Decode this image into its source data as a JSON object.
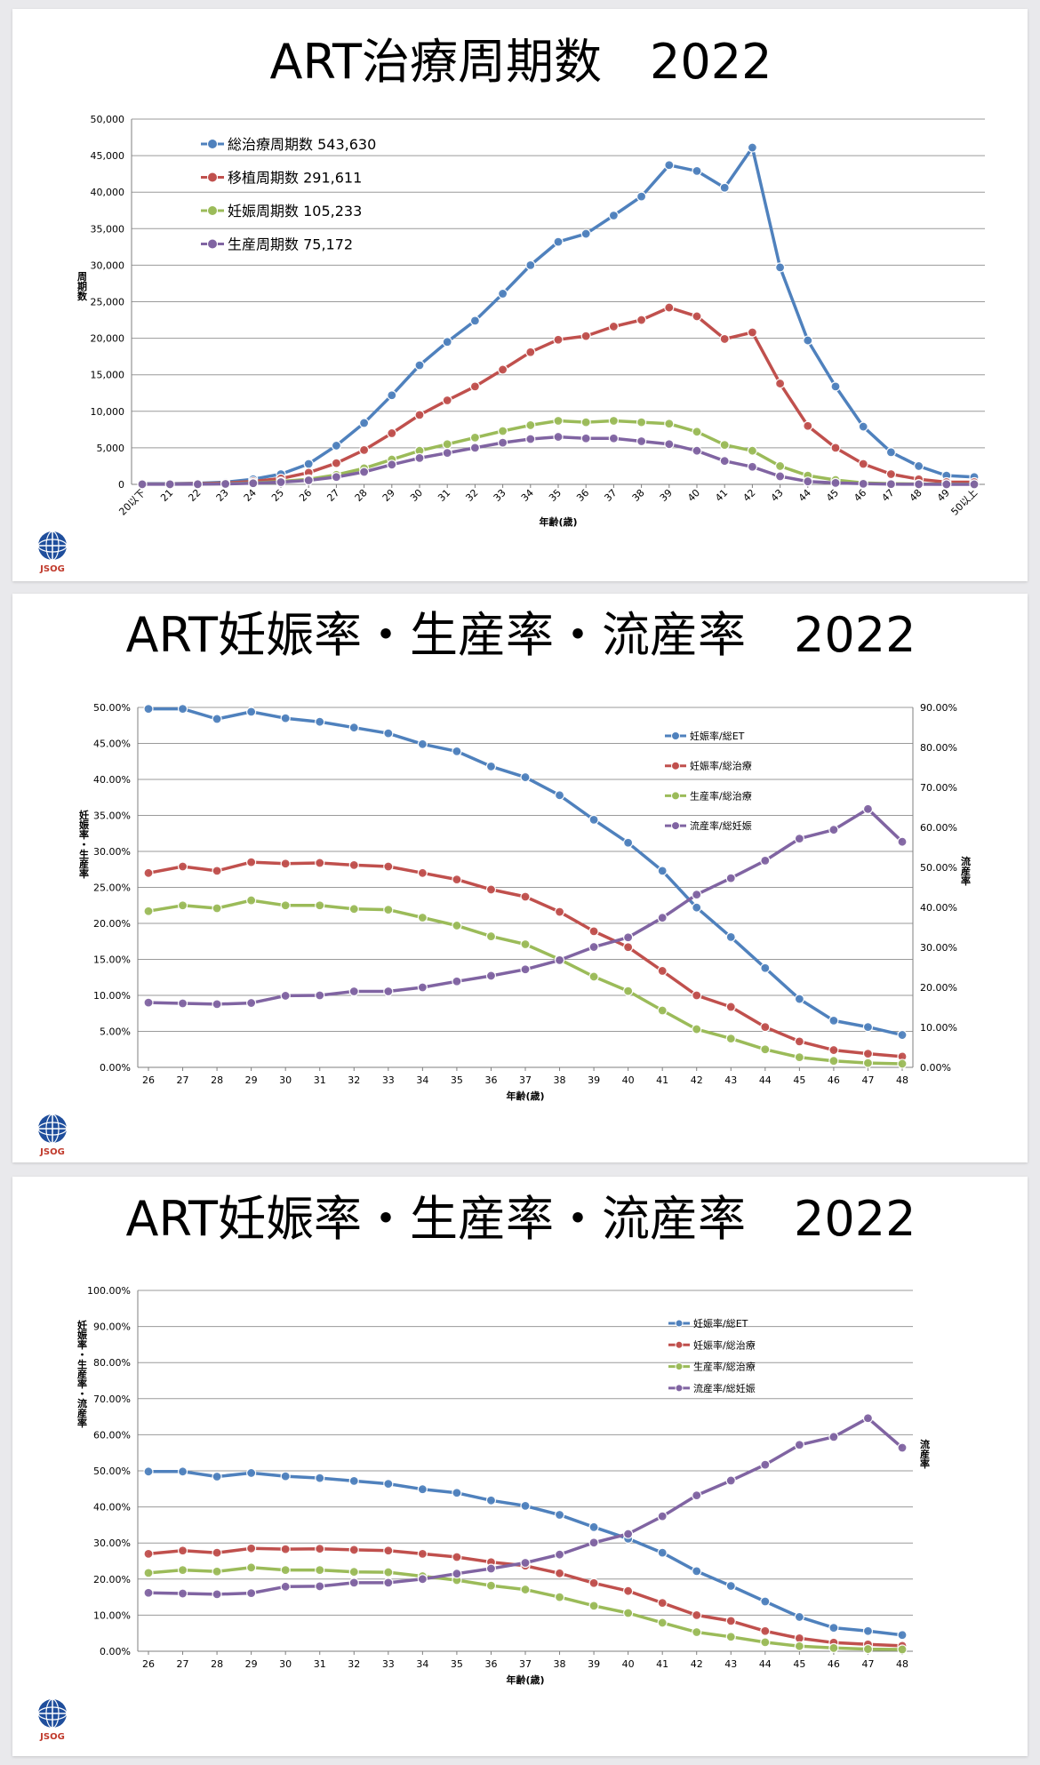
{
  "logo_text": "JSOG",
  "chart_data": [
    {
      "type": "line",
      "title": "ART治療周期数　2022",
      "xlabel": "年齢(歳)",
      "ylabel": "周期数",
      "ylim": [
        0,
        50000
      ],
      "yticks": [
        "0",
        "5,000",
        "10,000",
        "15,000",
        "20,000",
        "25,000",
        "30,000",
        "35,000",
        "40,000",
        "45,000",
        "50,000"
      ],
      "categories": [
        "20以下",
        "21",
        "22",
        "23",
        "24",
        "25",
        "26",
        "27",
        "28",
        "29",
        "30",
        "31",
        "32",
        "33",
        "34",
        "35",
        "36",
        "37",
        "38",
        "39",
        "40",
        "41",
        "42",
        "43",
        "44",
        "45",
        "46",
        "47",
        "48",
        "49",
        "50以上"
      ],
      "legend_position": "top-left",
      "series": [
        {
          "name": "総治療周期数 543,630",
          "color": "#4f81bd",
          "values": [
            100,
            100,
            150,
            300,
            700,
            1400,
            2800,
            5300,
            8400,
            12200,
            16300,
            19500,
            22400,
            26100,
            30000,
            33200,
            34300,
            36800,
            39400,
            43700,
            42900,
            40600,
            46100,
            29700,
            19700,
            13400,
            7900,
            4400,
            2500,
            1200,
            1000
          ]
        },
        {
          "name": "移植周期数 291,611",
          "color": "#c0504d",
          "values": [
            50,
            50,
            80,
            200,
            400,
            800,
            1600,
            2900,
            4700,
            7000,
            9500,
            11500,
            13400,
            15700,
            18100,
            19800,
            20300,
            21600,
            22500,
            24200,
            23000,
            19900,
            20800,
            13800,
            8000,
            5000,
            2800,
            1400,
            700,
            300,
            300
          ]
        },
        {
          "name": "妊娠周期数 105,233",
          "color": "#9bbb59",
          "values": [
            20,
            20,
            30,
            80,
            200,
            400,
            700,
            1300,
            2200,
            3400,
            4600,
            5500,
            6400,
            7300,
            8100,
            8700,
            8500,
            8700,
            8500,
            8300,
            7200,
            5400,
            4600,
            2500,
            1200,
            600,
            200,
            100,
            50,
            20,
            20
          ]
        },
        {
          "name": "生産周期数 75,172",
          "color": "#8064a2",
          "values": [
            10,
            10,
            20,
            60,
            150,
            300,
            550,
            1000,
            1700,
            2700,
            3600,
            4300,
            5000,
            5700,
            6200,
            6500,
            6300,
            6300,
            5900,
            5500,
            4600,
            3200,
            2400,
            1100,
            400,
            200,
            80,
            30,
            10,
            5,
            5
          ]
        }
      ]
    },
    {
      "type": "line",
      "title": "ART妊娠率・生産率・流産率　2022",
      "xlabel": "年齢(歳)",
      "ylabel": "妊娠率・生産率",
      "y2label": "流産率",
      "ylim": [
        0,
        50
      ],
      "y2lim": [
        0,
        90
      ],
      "yticks": [
        "0.00%",
        "5.00%",
        "10.00%",
        "15.00%",
        "20.00%",
        "25.00%",
        "30.00%",
        "35.00%",
        "40.00%",
        "45.00%",
        "50.00%"
      ],
      "y2ticks": [
        "0.00%",
        "10.00%",
        "20.00%",
        "30.00%",
        "40.00%",
        "50.00%",
        "60.00%",
        "70.00%",
        "80.00%",
        "90.00%"
      ],
      "categories": [
        "26",
        "27",
        "28",
        "29",
        "30",
        "31",
        "32",
        "33",
        "34",
        "35",
        "36",
        "37",
        "38",
        "39",
        "40",
        "41",
        "42",
        "43",
        "44",
        "45",
        "46",
        "47",
        "48"
      ],
      "legend_position": "top-right",
      "series": [
        {
          "name": "妊娠率/総ET",
          "color": "#4f81bd",
          "axis": "left",
          "values": [
            49.8,
            49.8,
            48.4,
            49.4,
            48.5,
            48.0,
            47.2,
            46.4,
            44.9,
            43.9,
            41.8,
            40.3,
            37.8,
            34.4,
            31.2,
            27.3,
            22.2,
            18.1,
            13.8,
            9.5,
            6.5,
            5.6,
            4.5
          ]
        },
        {
          "name": "妊娠率/総治療",
          "color": "#c0504d",
          "axis": "left",
          "values": [
            27.0,
            27.9,
            27.3,
            28.5,
            28.3,
            28.4,
            28.1,
            27.9,
            27.0,
            26.1,
            24.7,
            23.7,
            21.6,
            18.9,
            16.7,
            13.4,
            10.0,
            8.4,
            5.6,
            3.6,
            2.4,
            1.9,
            1.5
          ]
        },
        {
          "name": "生産率/総治療",
          "color": "#9bbb59",
          "axis": "left",
          "values": [
            21.7,
            22.5,
            22.1,
            23.2,
            22.5,
            22.5,
            22.0,
            21.9,
            20.8,
            19.7,
            18.2,
            17.1,
            15.0,
            12.6,
            10.6,
            7.9,
            5.3,
            4.0,
            2.5,
            1.4,
            0.9,
            0.6,
            0.5
          ]
        },
        {
          "name": "流産率/総妊娠",
          "color": "#8064a2",
          "axis": "right",
          "values": [
            16.2,
            16.0,
            15.8,
            16.1,
            17.9,
            18.0,
            19.0,
            19.0,
            20.0,
            21.5,
            22.9,
            24.5,
            26.8,
            30.1,
            32.5,
            37.4,
            43.2,
            47.3,
            51.7,
            57.2,
            59.4,
            64.6,
            56.4
          ]
        }
      ]
    },
    {
      "type": "line",
      "title": "ART妊娠率・生産率・流産率　2022",
      "xlabel": "年齢(歳)",
      "ylabel": "妊娠率・生産率・流産率",
      "y2label": "流産率",
      "ylim": [
        0,
        100
      ],
      "yticks": [
        "0.00%",
        "10.00%",
        "20.00%",
        "30.00%",
        "40.00%",
        "50.00%",
        "60.00%",
        "70.00%",
        "80.00%",
        "90.00%",
        "100.00%"
      ],
      "categories": [
        "26",
        "27",
        "28",
        "29",
        "30",
        "31",
        "32",
        "33",
        "34",
        "35",
        "36",
        "37",
        "38",
        "39",
        "40",
        "41",
        "42",
        "43",
        "44",
        "45",
        "46",
        "47",
        "48"
      ],
      "legend_position": "top-right",
      "series": [
        {
          "name": "妊娠率/総ET",
          "color": "#4f81bd",
          "values": [
            49.8,
            49.8,
            48.4,
            49.4,
            48.5,
            48.0,
            47.2,
            46.4,
            44.9,
            43.9,
            41.8,
            40.3,
            37.8,
            34.4,
            31.2,
            27.3,
            22.2,
            18.1,
            13.8,
            9.5,
            6.5,
            5.6,
            4.5
          ]
        },
        {
          "name": "妊娠率/総治療",
          "color": "#c0504d",
          "values": [
            27.0,
            27.9,
            27.3,
            28.5,
            28.3,
            28.4,
            28.1,
            27.9,
            27.0,
            26.1,
            24.7,
            23.7,
            21.6,
            18.9,
            16.7,
            13.4,
            10.0,
            8.4,
            5.6,
            3.6,
            2.4,
            1.9,
            1.5
          ]
        },
        {
          "name": "生産率/総治療",
          "color": "#9bbb59",
          "values": [
            21.7,
            22.5,
            22.1,
            23.2,
            22.5,
            22.5,
            22.0,
            21.9,
            20.8,
            19.7,
            18.2,
            17.1,
            15.0,
            12.6,
            10.6,
            7.9,
            5.3,
            4.0,
            2.5,
            1.4,
            0.9,
            0.6,
            0.5
          ]
        },
        {
          "name": "流産率/総妊娠",
          "color": "#8064a2",
          "values": [
            16.2,
            16.0,
            15.8,
            16.1,
            17.9,
            18.0,
            19.0,
            19.0,
            20.0,
            21.5,
            22.9,
            24.5,
            26.8,
            30.1,
            32.5,
            37.4,
            43.2,
            47.3,
            51.7,
            57.2,
            59.4,
            64.6,
            56.4
          ]
        }
      ]
    }
  ]
}
